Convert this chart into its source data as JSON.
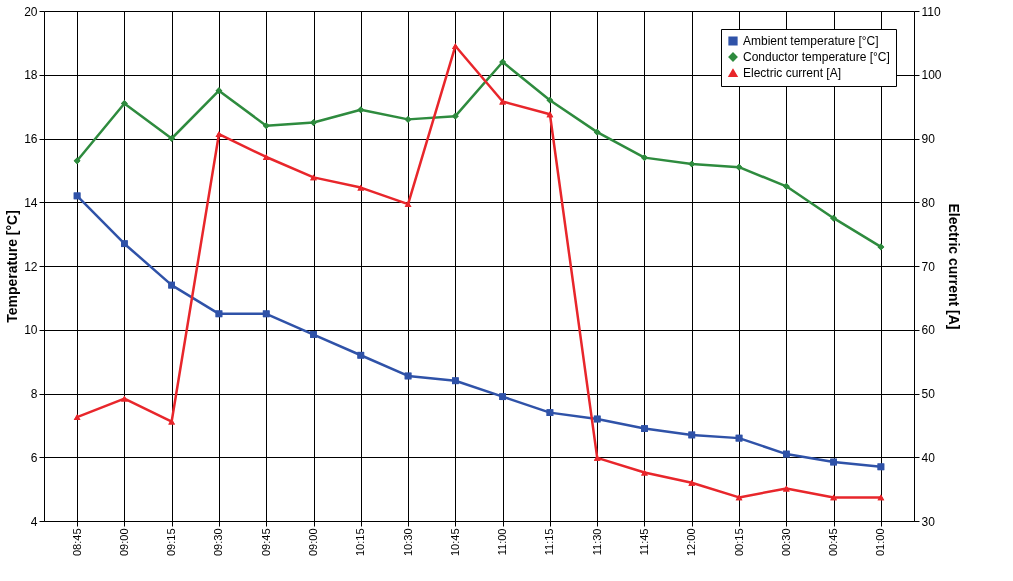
{
  "chart_data": {
    "type": "line",
    "categories": [
      "08:45",
      "09:00",
      "09:15",
      "09:30",
      "09:45",
      "09:00",
      "10:15",
      "10:30",
      "10:45",
      "11:00",
      "11:15",
      "11:30",
      "11:45",
      "12:00",
      "00:15",
      "00:30",
      "00:45",
      "01:00"
    ],
    "ylabel": "Temperature [°C]",
    "y2label": "Electric current [A]",
    "ylim": [
      4,
      20
    ],
    "yticks": [
      4,
      6,
      8,
      10,
      12,
      14,
      16,
      18,
      20
    ],
    "y2lim": [
      30,
      110
    ],
    "y2ticks": [
      30,
      40,
      50,
      60,
      70,
      80,
      90,
      100,
      110
    ],
    "grid": true,
    "legend": "top right",
    "line_style": "solid",
    "series": [
      {
        "name": "Ambient temperature [°C]",
        "color": "#2f52a8",
        "marker": "square",
        "values": [
          14.2,
          12.7,
          11.4,
          10.5,
          10.5,
          9.85,
          9.2,
          8.55,
          8.4,
          7.9,
          7.4,
          7.2,
          6.9,
          6.7,
          6.6,
          6.1,
          5.85,
          5.7
        ]
      },
      {
        "name": "Conductor temperature [°C]",
        "color": "#2e8b3e",
        "marker": "diamond",
        "values": [
          15.3,
          17.1,
          16.0,
          17.5,
          16.4,
          16.5,
          16.9,
          16.6,
          16.7,
          18.4,
          17.2,
          16.2,
          15.4,
          15.2,
          15.1,
          14.5,
          13.5,
          12.6
        ]
      },
      {
        "name": "Electric current [A]",
        "color": "#e8262b",
        "marker": "triangle",
        "axis": "y2",
        "values": [
          46.3,
          49.2,
          45.6,
          90.7,
          87.1,
          83.9,
          82.3,
          79.7,
          104.5,
          95.8,
          93.8,
          39.9,
          37.6,
          36.0,
          33.7,
          35.1,
          33.7,
          33.7
        ]
      }
    ]
  }
}
